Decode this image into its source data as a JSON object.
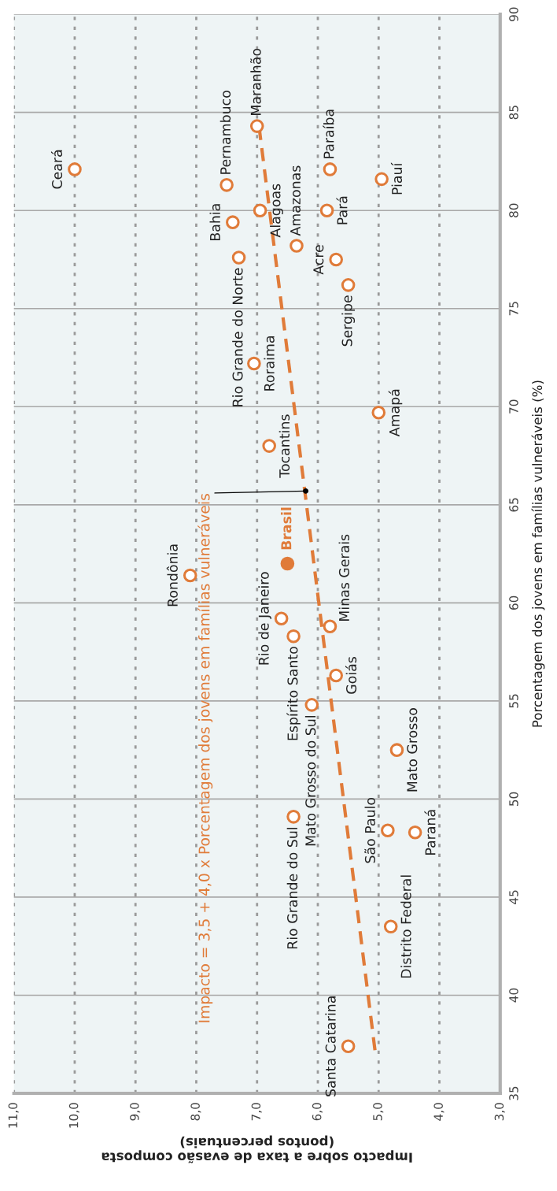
{
  "chart_data": {
    "type": "scatter",
    "xlabel": "Impacto sobre a taxa de evasão composta\n(pontos percentuais)",
    "ylabel": "Porcentagem dos jovens em famílias vulneráveis (%)",
    "xlim": [
      11,
      3
    ],
    "xticks": [
      {
        "value": 11,
        "label": "11,0"
      },
      {
        "value": 10,
        "label": "10,0"
      },
      {
        "value": 9,
        "label": "9,0"
      },
      {
        "value": 8,
        "label": "8,0"
      },
      {
        "value": 7,
        "label": "7,0"
      },
      {
        "value": 6,
        "label": "6,0"
      },
      {
        "value": 5,
        "label": "5,0"
      },
      {
        "value": 4,
        "label": "4,0"
      },
      {
        "value": 3,
        "label": "3,0"
      }
    ],
    "ylim": [
      35,
      90
    ],
    "yticks": [
      35,
      40,
      45,
      50,
      55,
      60,
      65,
      70,
      75,
      80,
      85,
      90
    ],
    "grid": true,
    "marker": "circle",
    "series": [
      {
        "color": "#e07b39",
        "x": [
          10.0,
          7.5,
          7.0,
          7.4,
          6.95,
          7.3,
          6.35,
          5.8,
          5.85,
          5.7,
          5.5,
          4.95,
          7.05,
          5.0,
          6.8,
          8.1,
          6.6,
          6.4,
          5.8,
          5.7,
          6.1,
          4.7,
          6.4,
          4.85,
          4.4,
          4.8,
          5.5
        ],
        "values": [
          82.1,
          81.3,
          84.3,
          79.4,
          80.0,
          77.6,
          78.2,
          82.1,
          80.0,
          77.5,
          76.2,
          81.6,
          72.2,
          69.7,
          68.0,
          61.4,
          59.2,
          58.3,
          58.8,
          56.3,
          54.8,
          52.5,
          49.1,
          48.4,
          48.3,
          43.5,
          37.4
        ]
      },
      {
        "name": "Brasil",
        "color": "#e07b39",
        "x": [
          6.5
        ],
        "values": [
          62.0
        ]
      },
      {
        "type": "line",
        "color": "#e07b39",
        "line_style": "dashed",
        "marker": "none",
        "x": [
          5.06,
          6.96
        ],
        "values": [
          37.2,
          84.1
        ]
      }
    ],
    "annotations": [
      {
        "text": "Ceará",
        "x": 10.0,
        "y": 82.1
      },
      {
        "text": "Pernambuco",
        "x": 7.5,
        "y": 81.3
      },
      {
        "text": "Maranhão",
        "x": 7.0,
        "y": 84.3
      },
      {
        "text": "Bahia",
        "x": 7.4,
        "y": 79.4
      },
      {
        "text": "Alagoas",
        "x": 6.95,
        "y": 80.0
      },
      {
        "text": "Rio Grande do Norte",
        "x": 7.3,
        "y": 77.6
      },
      {
        "text": "Amazonas",
        "x": 6.35,
        "y": 78.2
      },
      {
        "text": "Paraíba",
        "x": 5.8,
        "y": 82.1
      },
      {
        "text": "Pará",
        "x": 5.85,
        "y": 80.0
      },
      {
        "text": "Acre",
        "x": 5.7,
        "y": 77.5
      },
      {
        "text": "Sergipe",
        "x": 5.5,
        "y": 76.2
      },
      {
        "text": "Piauí",
        "x": 4.95,
        "y": 81.6
      },
      {
        "text": "Roraima",
        "x": 7.05,
        "y": 72.2
      },
      {
        "text": "Amapá",
        "x": 5.0,
        "y": 69.7
      },
      {
        "text": "Tocantins",
        "x": 6.8,
        "y": 68.0
      },
      {
        "text": "Rondônia",
        "x": 8.1,
        "y": 61.4
      },
      {
        "text": "Rio de Janeiro",
        "x": 6.6,
        "y": 59.2
      },
      {
        "text": "Espírito Santo",
        "x": 6.4,
        "y": 58.3
      },
      {
        "text": "Minas Gerais",
        "x": 5.8,
        "y": 58.8
      },
      {
        "text": "Goiás",
        "x": 5.7,
        "y": 56.3
      },
      {
        "text": "Mato Grosso do Sul",
        "x": 6.1,
        "y": 54.8
      },
      {
        "text": "Mato Grosso",
        "x": 4.7,
        "y": 52.5
      },
      {
        "text": "Rio Grande do Sul",
        "x": 6.4,
        "y": 49.1
      },
      {
        "text": "São Paulo",
        "x": 4.85,
        "y": 48.4
      },
      {
        "text": "Paraná",
        "x": 4.4,
        "y": 48.3
      },
      {
        "text": "Distrito Federal",
        "x": 4.8,
        "y": 43.5
      },
      {
        "text": "Santa Catarina",
        "x": 5.5,
        "y": 37.4
      },
      {
        "text": "Impacto = 3,5 + 4,0 x Porcentagem dos jovens em famílias vulneráveis",
        "x": 6.2,
        "y": 65.7
      }
    ]
  }
}
